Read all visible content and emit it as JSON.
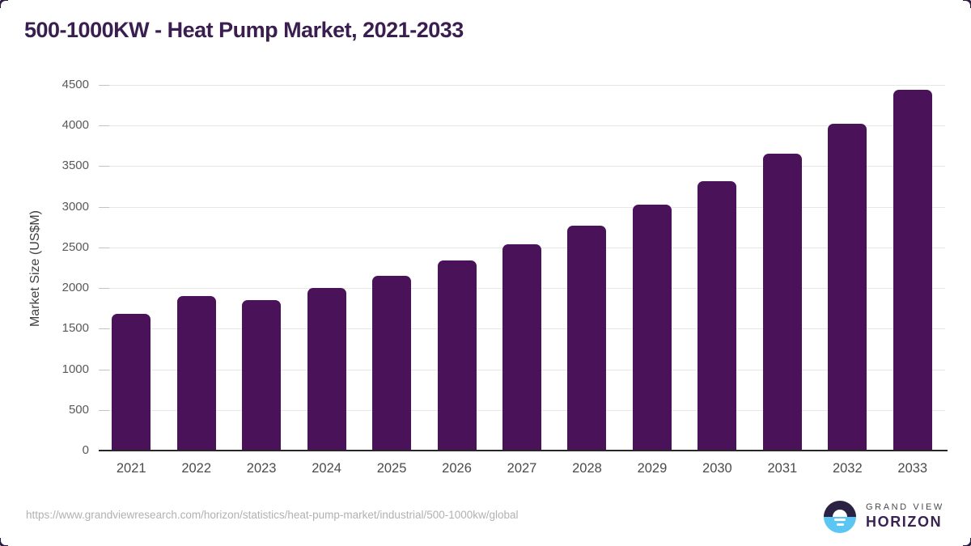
{
  "header": {
    "title": "500-1000KW - Heat Pump Market, 2021-2033"
  },
  "chart_data": {
    "type": "bar",
    "title": "500-1000KW - Heat Pump Market, 2021-2033",
    "categories": [
      "2021",
      "2022",
      "2023",
      "2024",
      "2025",
      "2026",
      "2027",
      "2028",
      "2029",
      "2030",
      "2031",
      "2032",
      "2033"
    ],
    "values": [
      1680,
      1900,
      1850,
      2000,
      2150,
      2340,
      2540,
      2770,
      3030,
      3320,
      3650,
      4020,
      4440
    ],
    "xlabel": "",
    "ylabel": "Market Size (US$M)",
    "ylim": [
      0,
      4500
    ],
    "ytick_step": 500,
    "grid": "horizontal-only",
    "legend": "none",
    "bar_color": "#4a1259"
  },
  "footer": {
    "source_url": "https://www.grandviewresearch.com/horizon/statistics/heat-pump-market/industrial/500-1000kw/global",
    "logo": {
      "icon": "horizon-sunrise-icon",
      "brand_top": "GRAND VIEW",
      "brand_bottom": "HORIZON"
    }
  },
  "colors": {
    "bar": "#4a1259",
    "title_text": "#3a1e4f",
    "axis_line": "#272727",
    "gridline": "#e7e7e7",
    "tick_label": "#595959",
    "x_label": "#4b4b4b",
    "url_text": "#b1b1b1",
    "logo_dark": "#2b2142",
    "logo_blue": "#5bc6f3",
    "corner_mark": "#2c1b3e"
  }
}
